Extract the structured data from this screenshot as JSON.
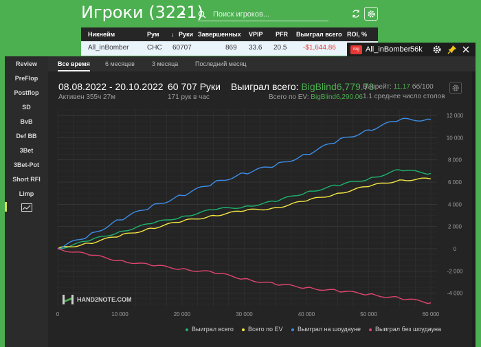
{
  "header": {
    "title": "Игроки (3221)",
    "search_placeholder": "Поиск игроков..."
  },
  "players_table": {
    "columns": [
      "Никнейм",
      "Рум",
      "Руки",
      "Завершенных",
      "VPIP",
      "PFR",
      "Выиграл всего",
      "ROI, %"
    ],
    "sort_arrow": "↓",
    "rows": [
      {
        "nickname": "All_inBomber",
        "room": "CHC",
        "hands": "60707",
        "completed": "869",
        "vpip": "33.6",
        "pfr": "20.5",
        "won_total": "-$1,644.86",
        "roi": ""
      }
    ]
  },
  "player_window": {
    "badge": "reg",
    "name": "All_inBomber",
    "hands_short": "56k",
    "sidebar": [
      "Review",
      "PreFlop",
      "Postflop",
      "SD",
      "BvB",
      "Def BB",
      "3Bet",
      "3Bet-Pot",
      "Short RFI",
      "Limp"
    ],
    "tabs": [
      "Все время",
      "6 месяцев",
      "3 месяца",
      "Последний месяц"
    ],
    "active_tab": "Все время",
    "stats": {
      "date_range": "08.08.2022 - 20.10.2022",
      "active_time": "Активен 355ч 27м",
      "hands_label": "60 707 Руки",
      "hands_per_hour": "171 рук в час",
      "won_total_label": "Выиграл всего:",
      "won_total_value": "BigBlind6,779.73",
      "ev_label": "Всего по EV:",
      "ev_value": "BigBlind6,290.06",
      "winrate_label": "Винрейт:",
      "winrate_value": "11.17",
      "winrate_unit": "бб/100",
      "tables_text": "1.1 среднее число столов"
    },
    "watermark": "HAND2NOTE.COM"
  },
  "colors": {
    "green_bg": "#4caf50",
    "won_total": "#1db56f",
    "ev": "#f5e642",
    "showdown": "#3d8ee8",
    "non_showdown": "#e0456f",
    "negative": "#e53935"
  },
  "icons": [
    "search-icon",
    "refresh-icon",
    "gear-icon",
    "pin-icon",
    "close-icon",
    "chart-icon"
  ],
  "chart_data": {
    "type": "line",
    "x_ticks": [
      "0",
      "10 000",
      "20 000",
      "30 000",
      "40 000",
      "50 000",
      "60 000"
    ],
    "y_ticks": [
      "12 000",
      "10 000",
      "8 000",
      "6 000",
      "4 000",
      "2 000",
      "0",
      "-2 000",
      "-4 000"
    ],
    "xlim": [
      0,
      61000
    ],
    "ylim": [
      -5200,
      12500
    ],
    "grid": true,
    "legend_position": "bottom",
    "series": [
      {
        "name": "Выиграл всего",
        "color": "#1db56f",
        "x": [
          0,
          5000,
          10000,
          15000,
          20000,
          25000,
          30000,
          35000,
          40000,
          45000,
          50000,
          55000,
          60000
        ],
        "y": [
          0,
          700,
          1550,
          2250,
          2900,
          3500,
          3800,
          4250,
          5100,
          5700,
          6300,
          7100,
          6780
        ]
      },
      {
        "name": "Всего по EV",
        "color": "#f5e642",
        "x": [
          0,
          5000,
          10000,
          15000,
          20000,
          25000,
          30000,
          35000,
          40000,
          45000,
          50000,
          55000,
          60000
        ],
        "y": [
          0,
          500,
          1150,
          1850,
          2450,
          3000,
          3400,
          3700,
          4300,
          5000,
          5600,
          6200,
          6290
        ]
      },
      {
        "name": "Выиграл на шоудауне",
        "color": "#3d8ee8",
        "x": [
          0,
          5000,
          10000,
          15000,
          20000,
          25000,
          30000,
          35000,
          40000,
          45000,
          50000,
          55000,
          60000
        ],
        "y": [
          0,
          1200,
          2600,
          3800,
          4800,
          5900,
          6800,
          7500,
          8500,
          9700,
          10700,
          11600,
          11650
        ]
      },
      {
        "name": "Выиграл без шоудауна",
        "color": "#e0456f",
        "x": [
          0,
          5000,
          10000,
          15000,
          20000,
          25000,
          30000,
          35000,
          40000,
          45000,
          50000,
          55000,
          60000
        ],
        "y": [
          0,
          -550,
          -1050,
          -1500,
          -1800,
          -2150,
          -2700,
          -3200,
          -3500,
          -3800,
          -4100,
          -4450,
          -4880
        ]
      }
    ]
  }
}
